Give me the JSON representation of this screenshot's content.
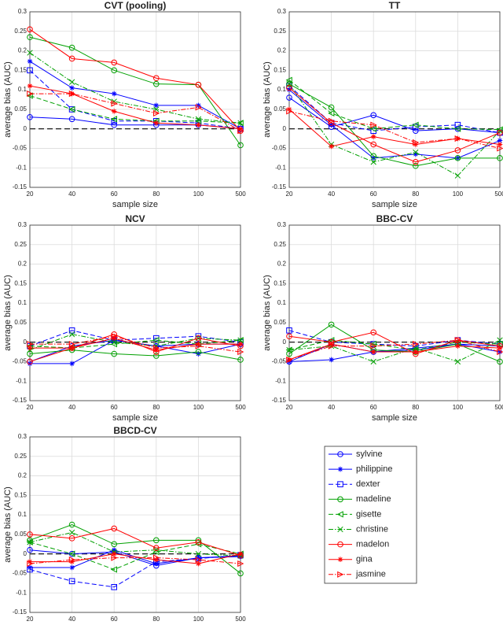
{
  "chart_data": [
    {
      "type": "line",
      "title": "CVT (pooling)",
      "xlabel": "sample size",
      "ylabel": "average bias (AUC)",
      "categories": [
        20,
        40,
        60,
        80,
        100,
        500
      ],
      "ylim": [
        -0.15,
        0.3
      ],
      "yticks": [
        -0.15,
        -0.1,
        -0.05,
        0,
        0.05,
        0.1,
        0.15,
        0.2,
        0.25,
        0.3
      ],
      "grid": true,
      "reference_line": 0,
      "series": [
        {
          "values": [
            0.03,
            0.025,
            0.01,
            0.01,
            0.01,
            0.0
          ]
        },
        {
          "values": [
            0.173,
            0.105,
            0.09,
            0.06,
            0.06,
            0.0
          ]
        },
        {
          "values": [
            0.15,
            0.05,
            0.02,
            0.02,
            0.015,
            0.0
          ]
        },
        {
          "values": [
            0.235,
            0.208,
            0.15,
            0.115,
            0.113,
            -0.042
          ]
        },
        {
          "values": [
            0.085,
            0.05,
            0.025,
            0.02,
            0.02,
            0.015
          ]
        },
        {
          "values": [
            0.195,
            0.12,
            0.07,
            0.05,
            0.025,
            0.015
          ]
        },
        {
          "values": [
            0.255,
            0.18,
            0.17,
            0.13,
            0.113,
            -0.005
          ]
        },
        {
          "values": [
            0.11,
            0.09,
            0.045,
            0.015,
            0.01,
            0.0
          ]
        },
        {
          "values": [
            0.09,
            0.09,
            0.065,
            0.04,
            0.055,
            -0.005
          ]
        }
      ]
    },
    {
      "type": "line",
      "title": "TT",
      "xlabel": "sample size",
      "ylabel": "average bias (AUC)",
      "categories": [
        20,
        40,
        60,
        80,
        100,
        500
      ],
      "ylim": [
        -0.15,
        0.3
      ],
      "yticks": [
        -0.15,
        -0.1,
        -0.05,
        0,
        0.05,
        0.1,
        0.15,
        0.2,
        0.25,
        0.3
      ],
      "grid": true,
      "reference_line": 0,
      "series": [
        {
          "values": [
            0.08,
            0.005,
            0.035,
            -0.005,
            0.0,
            -0.01
          ]
        },
        {
          "values": [
            0.1,
            0.01,
            -0.075,
            -0.065,
            -0.075,
            -0.03
          ]
        },
        {
          "values": [
            0.11,
            0.015,
            -0.005,
            0.005,
            0.01,
            -0.01
          ]
        },
        {
          "values": [
            0.115,
            0.055,
            -0.07,
            -0.095,
            -0.075,
            -0.075
          ]
        },
        {
          "values": [
            0.125,
            0.04,
            0.0,
            0.01,
            0.0,
            -0.002
          ]
        },
        {
          "values": [
            0.115,
            -0.04,
            -0.085,
            -0.06,
            -0.12,
            -0.005
          ]
        },
        {
          "values": [
            0.105,
            0.015,
            -0.04,
            -0.085,
            -0.055,
            -0.01
          ]
        },
        {
          "values": [
            0.05,
            -0.045,
            -0.02,
            -0.04,
            -0.025,
            -0.04
          ]
        },
        {
          "values": [
            0.045,
            0.02,
            0.01,
            -0.035,
            -0.025,
            -0.05
          ]
        }
      ]
    },
    {
      "type": "line",
      "title": "NCV",
      "xlabel": "sample size",
      "ylabel": "average bias (AUC)",
      "categories": [
        20,
        40,
        60,
        80,
        100,
        500
      ],
      "ylim": [
        -0.15,
        0.3
      ],
      "yticks": [
        -0.15,
        -0.1,
        -0.05,
        0,
        0.05,
        0.1,
        0.15,
        0.2,
        0.25,
        0.3
      ],
      "grid": true,
      "reference_line": 0,
      "series": [
        {
          "values": [
            -0.05,
            -0.01,
            0.005,
            -0.01,
            -0.005,
            -0.005
          ]
        },
        {
          "values": [
            -0.055,
            -0.055,
            0.005,
            -0.01,
            -0.03,
            -0.005
          ]
        },
        {
          "values": [
            -0.01,
            0.03,
            0.005,
            0.01,
            0.015,
            0.0
          ]
        },
        {
          "values": [
            -0.03,
            -0.02,
            -0.03,
            -0.035,
            -0.025,
            -0.045
          ]
        },
        {
          "values": [
            -0.01,
            -0.015,
            -0.005,
            0.005,
            -0.005,
            0.005
          ]
        },
        {
          "values": [
            -0.02,
            0.02,
            0.0,
            -0.01,
            0.01,
            0.005
          ]
        },
        {
          "values": [
            -0.05,
            -0.015,
            0.02,
            -0.025,
            0.01,
            -0.01
          ]
        },
        {
          "values": [
            -0.015,
            -0.015,
            0.01,
            -0.02,
            -0.005,
            -0.005
          ]
        },
        {
          "values": [
            -0.005,
            -0.005,
            0.015,
            -0.015,
            -0.01,
            -0.025
          ]
        }
      ]
    },
    {
      "type": "line",
      "title": "BBC-CV",
      "xlabel": "sample size",
      "ylabel": "average bias (AUC)",
      "categories": [
        20,
        40,
        60,
        80,
        100,
        500
      ],
      "ylim": [
        -0.15,
        0.3
      ],
      "yticks": [
        -0.15,
        -0.1,
        -0.05,
        0,
        0.05,
        0.1,
        0.15,
        0.2,
        0.25,
        0.3
      ],
      "grid": true,
      "reference_line": 0,
      "series": [
        {
          "values": [
            -0.05,
            -0.005,
            -0.025,
            -0.02,
            -0.005,
            -0.01
          ]
        },
        {
          "values": [
            -0.05,
            -0.045,
            -0.025,
            -0.015,
            -0.005,
            -0.025
          ]
        },
        {
          "values": [
            0.03,
            0.0,
            -0.005,
            -0.01,
            0.005,
            -0.005
          ]
        },
        {
          "values": [
            -0.03,
            0.045,
            -0.02,
            -0.025,
            -0.005,
            -0.05
          ]
        },
        {
          "values": [
            -0.02,
            0.005,
            -0.005,
            -0.02,
            0.0,
            -0.005
          ]
        },
        {
          "values": [
            -0.02,
            -0.01,
            -0.05,
            -0.015,
            -0.05,
            0.005
          ]
        },
        {
          "values": [
            0.015,
            0.0,
            0.025,
            -0.03,
            0.005,
            -0.01
          ]
        },
        {
          "values": [
            -0.045,
            -0.005,
            -0.025,
            -0.025,
            -0.01,
            -0.015
          ]
        },
        {
          "values": [
            -0.045,
            -0.01,
            -0.01,
            -0.005,
            0.005,
            -0.025
          ]
        }
      ]
    },
    {
      "type": "line",
      "title": "BBCD-CV",
      "xlabel": "sample size",
      "ylabel": "average bias (AUC)",
      "categories": [
        20,
        40,
        60,
        80,
        100,
        500
      ],
      "ylim": [
        -0.15,
        0.3
      ],
      "yticks": [
        -0.15,
        -0.1,
        -0.05,
        0,
        0.05,
        0.1,
        0.15,
        0.2,
        0.25,
        0.3
      ],
      "grid": true,
      "reference_line": 0,
      "series": [
        {
          "values": [
            0.01,
            0.0,
            0.005,
            -0.03,
            -0.01,
            -0.005
          ]
        },
        {
          "values": [
            -0.035,
            -0.035,
            0.01,
            -0.025,
            -0.01,
            -0.007
          ]
        },
        {
          "values": [
            -0.04,
            -0.07,
            -0.085,
            -0.02,
            -0.012,
            -0.003
          ]
        },
        {
          "values": [
            0.035,
            0.075,
            0.025,
            0.035,
            0.035,
            -0.05
          ]
        },
        {
          "values": [
            0.03,
            0.0,
            -0.04,
            0.005,
            0.025,
            0.0
          ]
        },
        {
          "values": [
            0.03,
            0.055,
            0.005,
            0.01,
            0.0,
            -0.005
          ]
        },
        {
          "values": [
            0.05,
            0.04,
            0.065,
            0.015,
            0.03,
            -0.004
          ]
        },
        {
          "values": [
            -0.02,
            -0.02,
            0.0,
            -0.015,
            -0.025,
            0.0
          ]
        },
        {
          "values": [
            -0.025,
            -0.015,
            -0.01,
            -0.01,
            -0.015,
            -0.025
          ]
        }
      ]
    }
  ],
  "legend": {
    "entries": [
      {
        "name": "sylvine",
        "color": "#0000ff",
        "line": "solid",
        "marker": "circle"
      },
      {
        "name": "philippine",
        "color": "#0000ff",
        "line": "solid",
        "marker": "star"
      },
      {
        "name": "dexter",
        "color": "#0000ff",
        "line": "dashed",
        "marker": "square"
      },
      {
        "name": "madeline",
        "color": "#00a000",
        "line": "solid",
        "marker": "circle"
      },
      {
        "name": "gisette",
        "color": "#00a000",
        "line": "dashed",
        "marker": "triangle-left"
      },
      {
        "name": "christine",
        "color": "#00a000",
        "line": "dashdot",
        "marker": "x"
      },
      {
        "name": "madelon",
        "color": "#ff0000",
        "line": "solid",
        "marker": "circle"
      },
      {
        "name": "gina",
        "color": "#ff0000",
        "line": "solid",
        "marker": "star"
      },
      {
        "name": "jasmine",
        "color": "#ff0000",
        "line": "dashdot",
        "marker": "triangle-right"
      }
    ]
  }
}
